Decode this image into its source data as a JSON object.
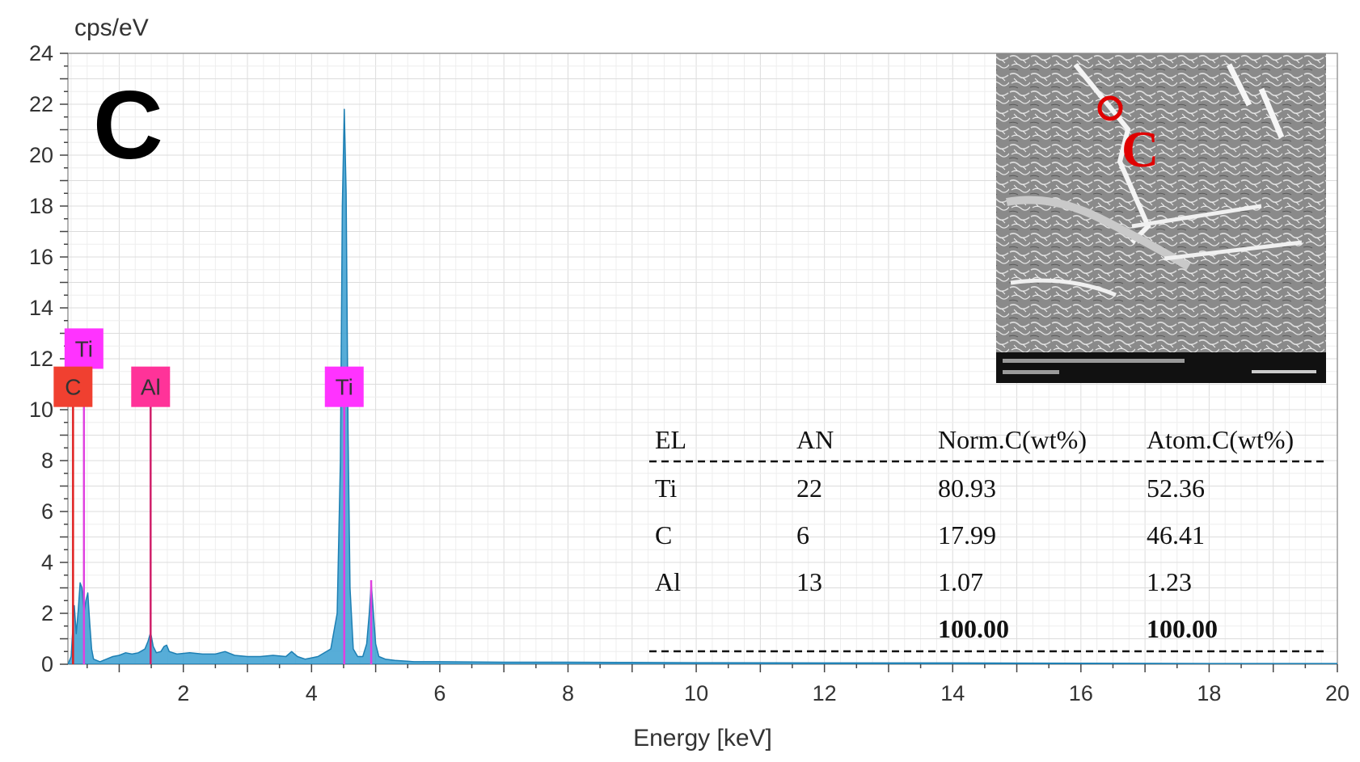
{
  "chart_data": {
    "type": "line",
    "panel_label": "C",
    "ylabel": "cps/eV",
    "xlabel": "Energy [keV]",
    "xlim": [
      0.2,
      20
    ],
    "ylim": [
      0,
      24
    ],
    "x_ticks": [
      2,
      4,
      6,
      8,
      10,
      12,
      14,
      16,
      18,
      20
    ],
    "y_ticks": [
      0,
      2,
      4,
      6,
      8,
      10,
      12,
      14,
      16,
      18,
      20,
      22,
      24
    ],
    "grid": true,
    "series": [
      {
        "color": "#3a9fd1",
        "x": [
          0.2,
          0.25,
          0.28,
          0.3,
          0.33,
          0.36,
          0.39,
          0.42,
          0.45,
          0.48,
          0.51,
          0.54,
          0.57,
          0.6,
          0.7,
          0.8,
          0.9,
          1.0,
          1.1,
          1.2,
          1.3,
          1.4,
          1.45,
          1.49,
          1.53,
          1.58,
          1.65,
          1.7,
          1.74,
          1.78,
          1.9,
          2.1,
          2.3,
          2.5,
          2.65,
          2.8,
          3.0,
          3.2,
          3.4,
          3.6,
          3.69,
          3.78,
          3.9,
          4.1,
          4.3,
          4.4,
          4.45,
          4.48,
          4.51,
          4.54,
          4.57,
          4.6,
          4.65,
          4.72,
          4.8,
          4.86,
          4.9,
          4.93,
          4.96,
          5.0,
          5.05,
          5.15,
          5.3,
          5.6,
          6.0,
          7.0,
          8.0,
          9.0,
          10.0,
          12.0,
          14.0,
          16.0,
          18.0,
          20.0
        ],
        "y": [
          0,
          0.3,
          1.5,
          2.3,
          1.2,
          2.1,
          3.2,
          3.0,
          2.0,
          2.5,
          2.8,
          1.6,
          0.6,
          0.2,
          0.1,
          0.2,
          0.3,
          0.35,
          0.45,
          0.4,
          0.45,
          0.6,
          0.9,
          1.25,
          0.7,
          0.45,
          0.5,
          0.7,
          0.75,
          0.5,
          0.4,
          0.45,
          0.4,
          0.4,
          0.5,
          0.35,
          0.3,
          0.3,
          0.35,
          0.3,
          0.5,
          0.3,
          0.2,
          0.3,
          0.6,
          2.0,
          8.0,
          18.0,
          21.8,
          18.5,
          9.0,
          3.0,
          0.6,
          0.3,
          0.3,
          0.8,
          2.0,
          3.2,
          2.2,
          0.8,
          0.3,
          0.2,
          0.15,
          0.1,
          0.1,
          0.08,
          0.08,
          0.07,
          0.06,
          0.05,
          0.05,
          0.04,
          0.03,
          0.03
        ]
      }
    ],
    "peak_markers": [
      {
        "element": "Ti",
        "energy": 0.45,
        "line_color": "#e040e0",
        "box_color": "#ff33ff",
        "label_level": 12.4
      },
      {
        "element": "C",
        "energy": 0.28,
        "line_color": "#e02020",
        "box_color": "#f04030",
        "label_level": 10.9
      },
      {
        "element": "Al",
        "energy": 1.49,
        "line_color": "#d0206a",
        "box_color": "#ff3399",
        "label_level": 10.9
      },
      {
        "element": "Ti",
        "energy": 4.51,
        "line_color": "#e040e0",
        "box_color": "#ff33ff",
        "label_level": 10.9
      },
      {
        "element": "",
        "energy": 4.93,
        "line_color": "#e040e0",
        "box_color": "",
        "label_level": 0
      }
    ]
  },
  "table": {
    "headers": [
      "EL",
      "AN",
      "Norm.C(wt%)",
      "Atom.C(wt%)"
    ],
    "rows": [
      [
        "Ti",
        "22",
        "80.93",
        "52.36"
      ],
      [
        "C",
        "6",
        "17.99",
        "46.41"
      ],
      [
        "Al",
        "13",
        "1.07",
        "1.23"
      ]
    ],
    "totals": [
      "",
      "",
      "100.00",
      "100.00"
    ]
  },
  "inset": {
    "marker_label": "C",
    "marker_color": "#e00000"
  }
}
